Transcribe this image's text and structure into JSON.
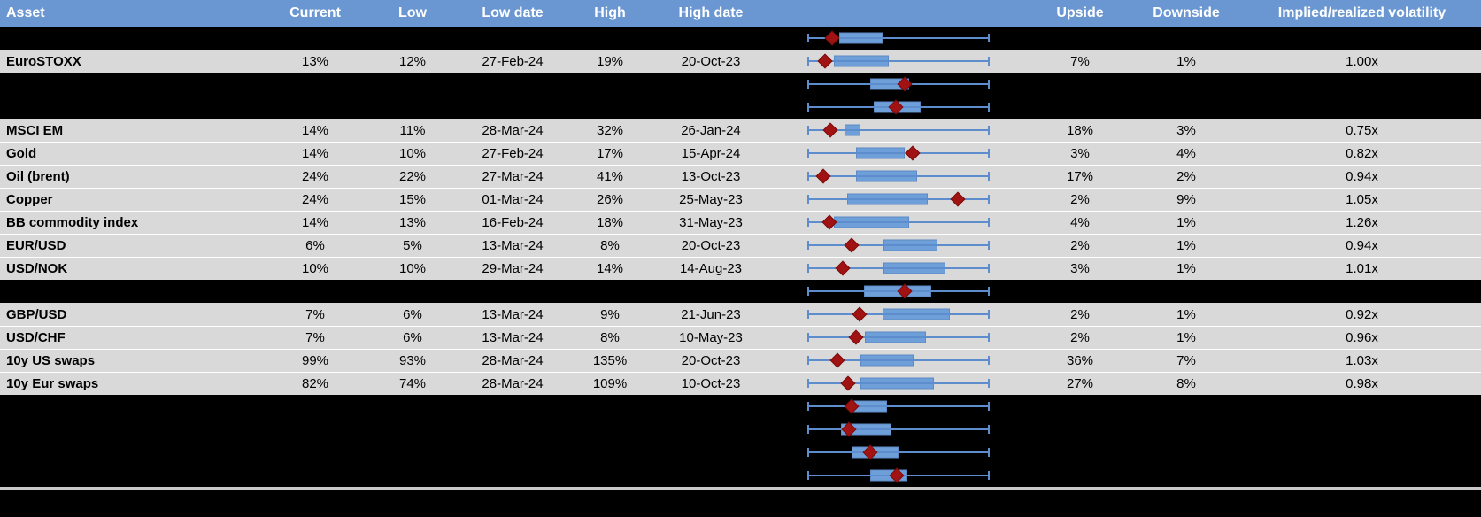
{
  "colors": {
    "header_bg": "#6A97D2",
    "header_text": "#FFFFFF",
    "data_row_bg": "#D9D9D9",
    "hidden_row_bg": "#000000",
    "box_fill": "#6F9FD8",
    "whisker_blue": "#5E8DCE",
    "diamond_red": "#A01312",
    "separator_gray": "#C9C9C9",
    "text": "#000000"
  },
  "header": {
    "asset": "Asset",
    "current": "Current",
    "low": "Low",
    "low_date": "Low date",
    "high": "High",
    "high_date": "High date",
    "upside": "Upside",
    "downside": "Downside",
    "implied": "Implied/realized volatility"
  },
  "chart_data": {
    "type": "table",
    "note": "Each row contains a horizontal box plot; box positions are percent of whisker track (0-100), d = red diamond marker position.",
    "rows_key": "rows"
  },
  "rows": [
    {
      "kind": "hidden",
      "box": {
        "lo": 17.5,
        "hi": 41.3,
        "d": 13.6
      }
    },
    {
      "kind": "data",
      "asset": "EuroSTOXX",
      "current": "13%",
      "low": "12%",
      "low_date": "27-Feb-24",
      "high": "19%",
      "high_date": "20-Oct-23",
      "upside": "7%",
      "downside": "1%",
      "implied": "1.00x",
      "box": {
        "lo": 14.5,
        "hi": 44.7,
        "d": 9.7
      }
    },
    {
      "kind": "hidden",
      "box": {
        "lo": 34.5,
        "hi": 55.8,
        "d": 53.4
      }
    },
    {
      "kind": "hidden",
      "box": {
        "lo": 36.4,
        "hi": 62.1,
        "d": 48.5
      }
    },
    {
      "kind": "data",
      "asset": "MSCI EM",
      "current": "14%",
      "low": "11%",
      "low_date": "28-Mar-24",
      "high": "32%",
      "high_date": "26-Jan-24",
      "upside": "18%",
      "downside": "3%",
      "implied": "0.75x",
      "box": {
        "lo": 20.4,
        "hi": 29.1,
        "d": 12.6
      }
    },
    {
      "kind": "data",
      "asset": "Gold",
      "current": "14%",
      "low": "10%",
      "low_date": "27-Feb-24",
      "high": "17%",
      "high_date": "15-Apr-24",
      "upside": "3%",
      "downside": "4%",
      "implied": "0.82x",
      "box": {
        "lo": 26.7,
        "hi": 53.4,
        "d": 57.8
      }
    },
    {
      "kind": "data",
      "asset": "Oil (brent)",
      "current": "24%",
      "low": "22%",
      "low_date": "27-Mar-24",
      "high": "41%",
      "high_date": "13-Oct-23",
      "upside": "17%",
      "downside": "2%",
      "implied": "0.94x",
      "box": {
        "lo": 26.7,
        "hi": 60.2,
        "d": 8.7
      }
    },
    {
      "kind": "data",
      "asset": "Copper",
      "current": "24%",
      "low": "15%",
      "low_date": "01-Mar-24",
      "high": "26%",
      "high_date": "25-May-23",
      "upside": "2%",
      "downside": "9%",
      "implied": "1.05x",
      "box": {
        "lo": 21.8,
        "hi": 66.0,
        "d": 82.5
      }
    },
    {
      "kind": "data",
      "asset": "BB commodity index",
      "current": "14%",
      "low": "13%",
      "low_date": "16-Feb-24",
      "high": "18%",
      "high_date": "31-May-23",
      "upside": "4%",
      "downside": "1%",
      "implied": "1.26x",
      "box": {
        "lo": 14.6,
        "hi": 55.8,
        "d": 12.1
      }
    },
    {
      "kind": "data",
      "asset": "EUR/USD",
      "current": "6%",
      "low": "5%",
      "low_date": "13-Mar-24",
      "high": "8%",
      "high_date": "20-Oct-23",
      "upside": "2%",
      "downside": "1%",
      "implied": "0.94x",
      "box": {
        "lo": 41.7,
        "hi": 71.4,
        "d": 24.3
      }
    },
    {
      "kind": "data",
      "asset": "USD/NOK",
      "current": "10%",
      "low": "10%",
      "low_date": "29-Mar-24",
      "high": "14%",
      "high_date": "14-Aug-23",
      "upside": "3%",
      "downside": "1%",
      "implied": "1.01x",
      "box": {
        "lo": 41.7,
        "hi": 75.7,
        "d": 19.4
      }
    },
    {
      "kind": "hidden",
      "box": {
        "lo": 31.1,
        "hi": 68.0,
        "d": 53.4
      }
    },
    {
      "kind": "data",
      "asset": "GBP/USD",
      "current": "7%",
      "low": "6%",
      "low_date": "13-Mar-24",
      "high": "9%",
      "high_date": "21-Jun-23",
      "upside": "2%",
      "downside": "1%",
      "implied": "0.92x",
      "box": {
        "lo": 41.3,
        "hi": 78.1,
        "d": 28.6
      }
    },
    {
      "kind": "data",
      "asset": "USD/CHF",
      "current": "7%",
      "low": "6%",
      "low_date": "13-Mar-24",
      "high": "8%",
      "high_date": "10-May-23",
      "upside": "2%",
      "downside": "1%",
      "implied": "0.96x",
      "box": {
        "lo": 31.6,
        "hi": 65.0,
        "d": 26.7
      }
    },
    {
      "kind": "data",
      "asset": "10y US swaps",
      "current": "99%",
      "low": "93%",
      "low_date": "28-Mar-24",
      "high": "135%",
      "high_date": "20-Oct-23",
      "upside": "36%",
      "downside": "7%",
      "implied": "1.03x",
      "box": {
        "lo": 29.1,
        "hi": 58.3,
        "d": 16.5
      }
    },
    {
      "kind": "data",
      "asset": "10y Eur swaps",
      "current": "82%",
      "low": "74%",
      "low_date": "28-Mar-24",
      "high": "109%",
      "high_date": "10-Oct-23",
      "upside": "27%",
      "downside": "8%",
      "implied": "0.98x",
      "box": {
        "lo": 29.1,
        "hi": 69.4,
        "d": 22.3
      }
    },
    {
      "kind": "hidden",
      "box": {
        "lo": 23.3,
        "hi": 43.7,
        "d": 24.3
      }
    },
    {
      "kind": "hidden",
      "box": {
        "lo": 18.4,
        "hi": 46.1,
        "d": 22.8
      }
    },
    {
      "kind": "hidden",
      "box": {
        "lo": 24.3,
        "hi": 50.0,
        "d": 34.5
      }
    },
    {
      "kind": "hidden",
      "box": {
        "lo": 34.5,
        "hi": 54.9,
        "d": 49.0
      }
    }
  ]
}
